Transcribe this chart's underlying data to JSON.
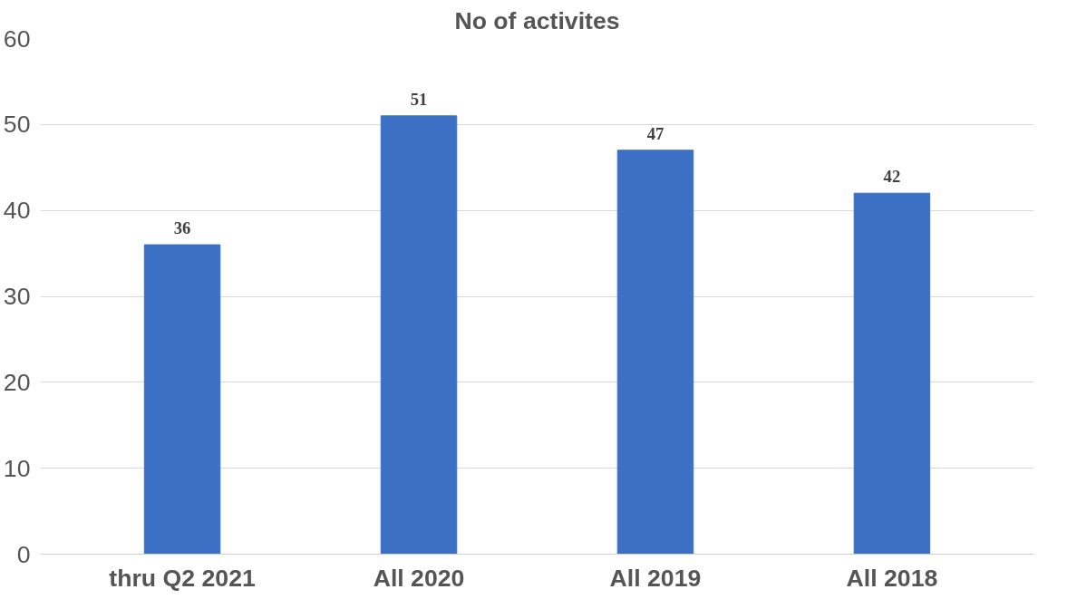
{
  "chart_data": {
    "type": "bar",
    "title": "No of activites",
    "categories": [
      "thru Q2 2021",
      "All 2020",
      "All 2019",
      "All 2018"
    ],
    "values": [
      36,
      51,
      47,
      42
    ],
    "color": "#3c70c4",
    "ylim": [
      0,
      60
    ],
    "yticks": [
      0,
      10,
      20,
      30,
      40,
      50,
      60
    ],
    "grid": "y",
    "data_labels": true
  }
}
